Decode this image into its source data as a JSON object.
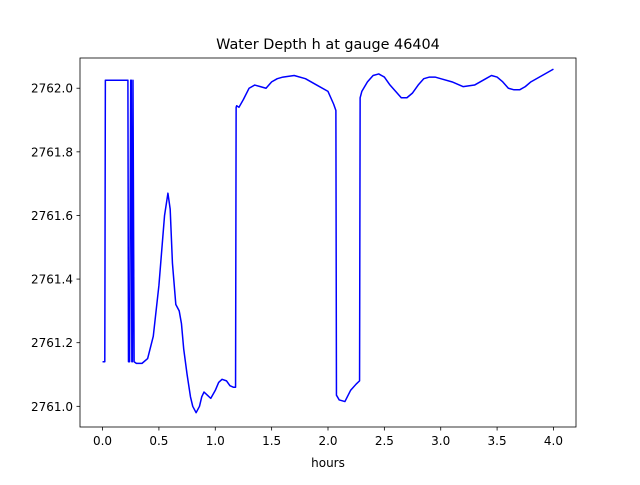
{
  "chart_data": {
    "type": "line",
    "title": "Water Depth h at gauge 46404",
    "xlabel": "hours",
    "ylabel": "",
    "xlim": [
      -0.2,
      4.2
    ],
    "ylim": [
      2760.935,
      2762.095
    ],
    "xticks": [
      0.0,
      0.5,
      1.0,
      1.5,
      2.0,
      2.5,
      3.0,
      3.5,
      4.0
    ],
    "xtick_labels": [
      "0.0",
      "0.5",
      "1.0",
      "1.5",
      "2.0",
      "2.5",
      "3.0",
      "3.5",
      "4.0"
    ],
    "yticks": [
      2761.0,
      2761.2,
      2761.4,
      2761.6,
      2761.8,
      2762.0
    ],
    "ytick_labels": [
      "2761.0",
      "2761.2",
      "2761.4",
      "2761.6",
      "2761.8",
      "2762.0"
    ],
    "grid": false,
    "legend": "none",
    "series": [
      {
        "color": "#0000ff",
        "x": [
          0.0,
          0.02,
          0.025,
          0.1,
          0.2,
          0.225,
          0.23,
          0.24,
          0.25,
          0.255,
          0.26,
          0.265,
          0.27,
          0.28,
          0.3,
          0.35,
          0.4,
          0.45,
          0.5,
          0.55,
          0.58,
          0.6,
          0.62,
          0.65,
          0.68,
          0.7,
          0.72,
          0.75,
          0.78,
          0.8,
          0.83,
          0.86,
          0.88,
          0.9,
          0.93,
          0.96,
          1.0,
          1.03,
          1.06,
          1.1,
          1.13,
          1.16,
          1.18,
          1.185,
          1.19,
          1.21,
          1.25,
          1.3,
          1.35,
          1.4,
          1.45,
          1.5,
          1.55,
          1.6,
          1.7,
          1.8,
          1.9,
          2.0,
          2.05,
          2.07,
          2.075,
          2.1,
          2.15,
          2.2,
          2.25,
          2.28,
          2.285,
          2.3,
          2.35,
          2.4,
          2.45,
          2.5,
          2.55,
          2.6,
          2.65,
          2.7,
          2.75,
          2.8,
          2.85,
          2.9,
          2.95,
          3.0,
          3.1,
          3.2,
          3.3,
          3.4,
          3.45,
          3.5,
          3.55,
          3.6,
          3.65,
          3.7,
          3.75,
          3.8,
          3.9,
          4.0
        ],
        "y": [
          2761.14,
          2761.14,
          2762.025,
          2762.025,
          2762.025,
          2762.025,
          2761.14,
          2761.14,
          2762.025,
          2762.025,
          2761.14,
          2761.14,
          2762.025,
          2761.14,
          2761.135,
          2761.135,
          2761.15,
          2761.22,
          2761.38,
          2761.6,
          2761.67,
          2761.62,
          2761.45,
          2761.32,
          2761.3,
          2761.26,
          2761.18,
          2761.1,
          2761.03,
          2761.0,
          2760.98,
          2761.0,
          2761.03,
          2761.045,
          2761.035,
          2761.025,
          2761.05,
          2761.075,
          2761.085,
          2761.08,
          2761.065,
          2761.06,
          2761.06,
          2761.94,
          2761.945,
          2761.94,
          2761.965,
          2762.0,
          2762.01,
          2762.005,
          2762.0,
          2762.02,
          2762.03,
          2762.035,
          2762.04,
          2762.03,
          2762.01,
          2761.99,
          2761.95,
          2761.93,
          2761.035,
          2761.02,
          2761.015,
          2761.05,
          2761.07,
          2761.08,
          2761.97,
          2761.99,
          2762.02,
          2762.04,
          2762.045,
          2762.035,
          2762.01,
          2761.99,
          2761.97,
          2761.97,
          2761.985,
          2762.01,
          2762.03,
          2762.035,
          2762.035,
          2762.03,
          2762.02,
          2762.005,
          2762.01,
          2762.03,
          2762.04,
          2762.035,
          2762.02,
          2762.0,
          2761.995,
          2761.995,
          2762.005,
          2762.02,
          2762.04,
          2762.06
        ]
      }
    ]
  }
}
